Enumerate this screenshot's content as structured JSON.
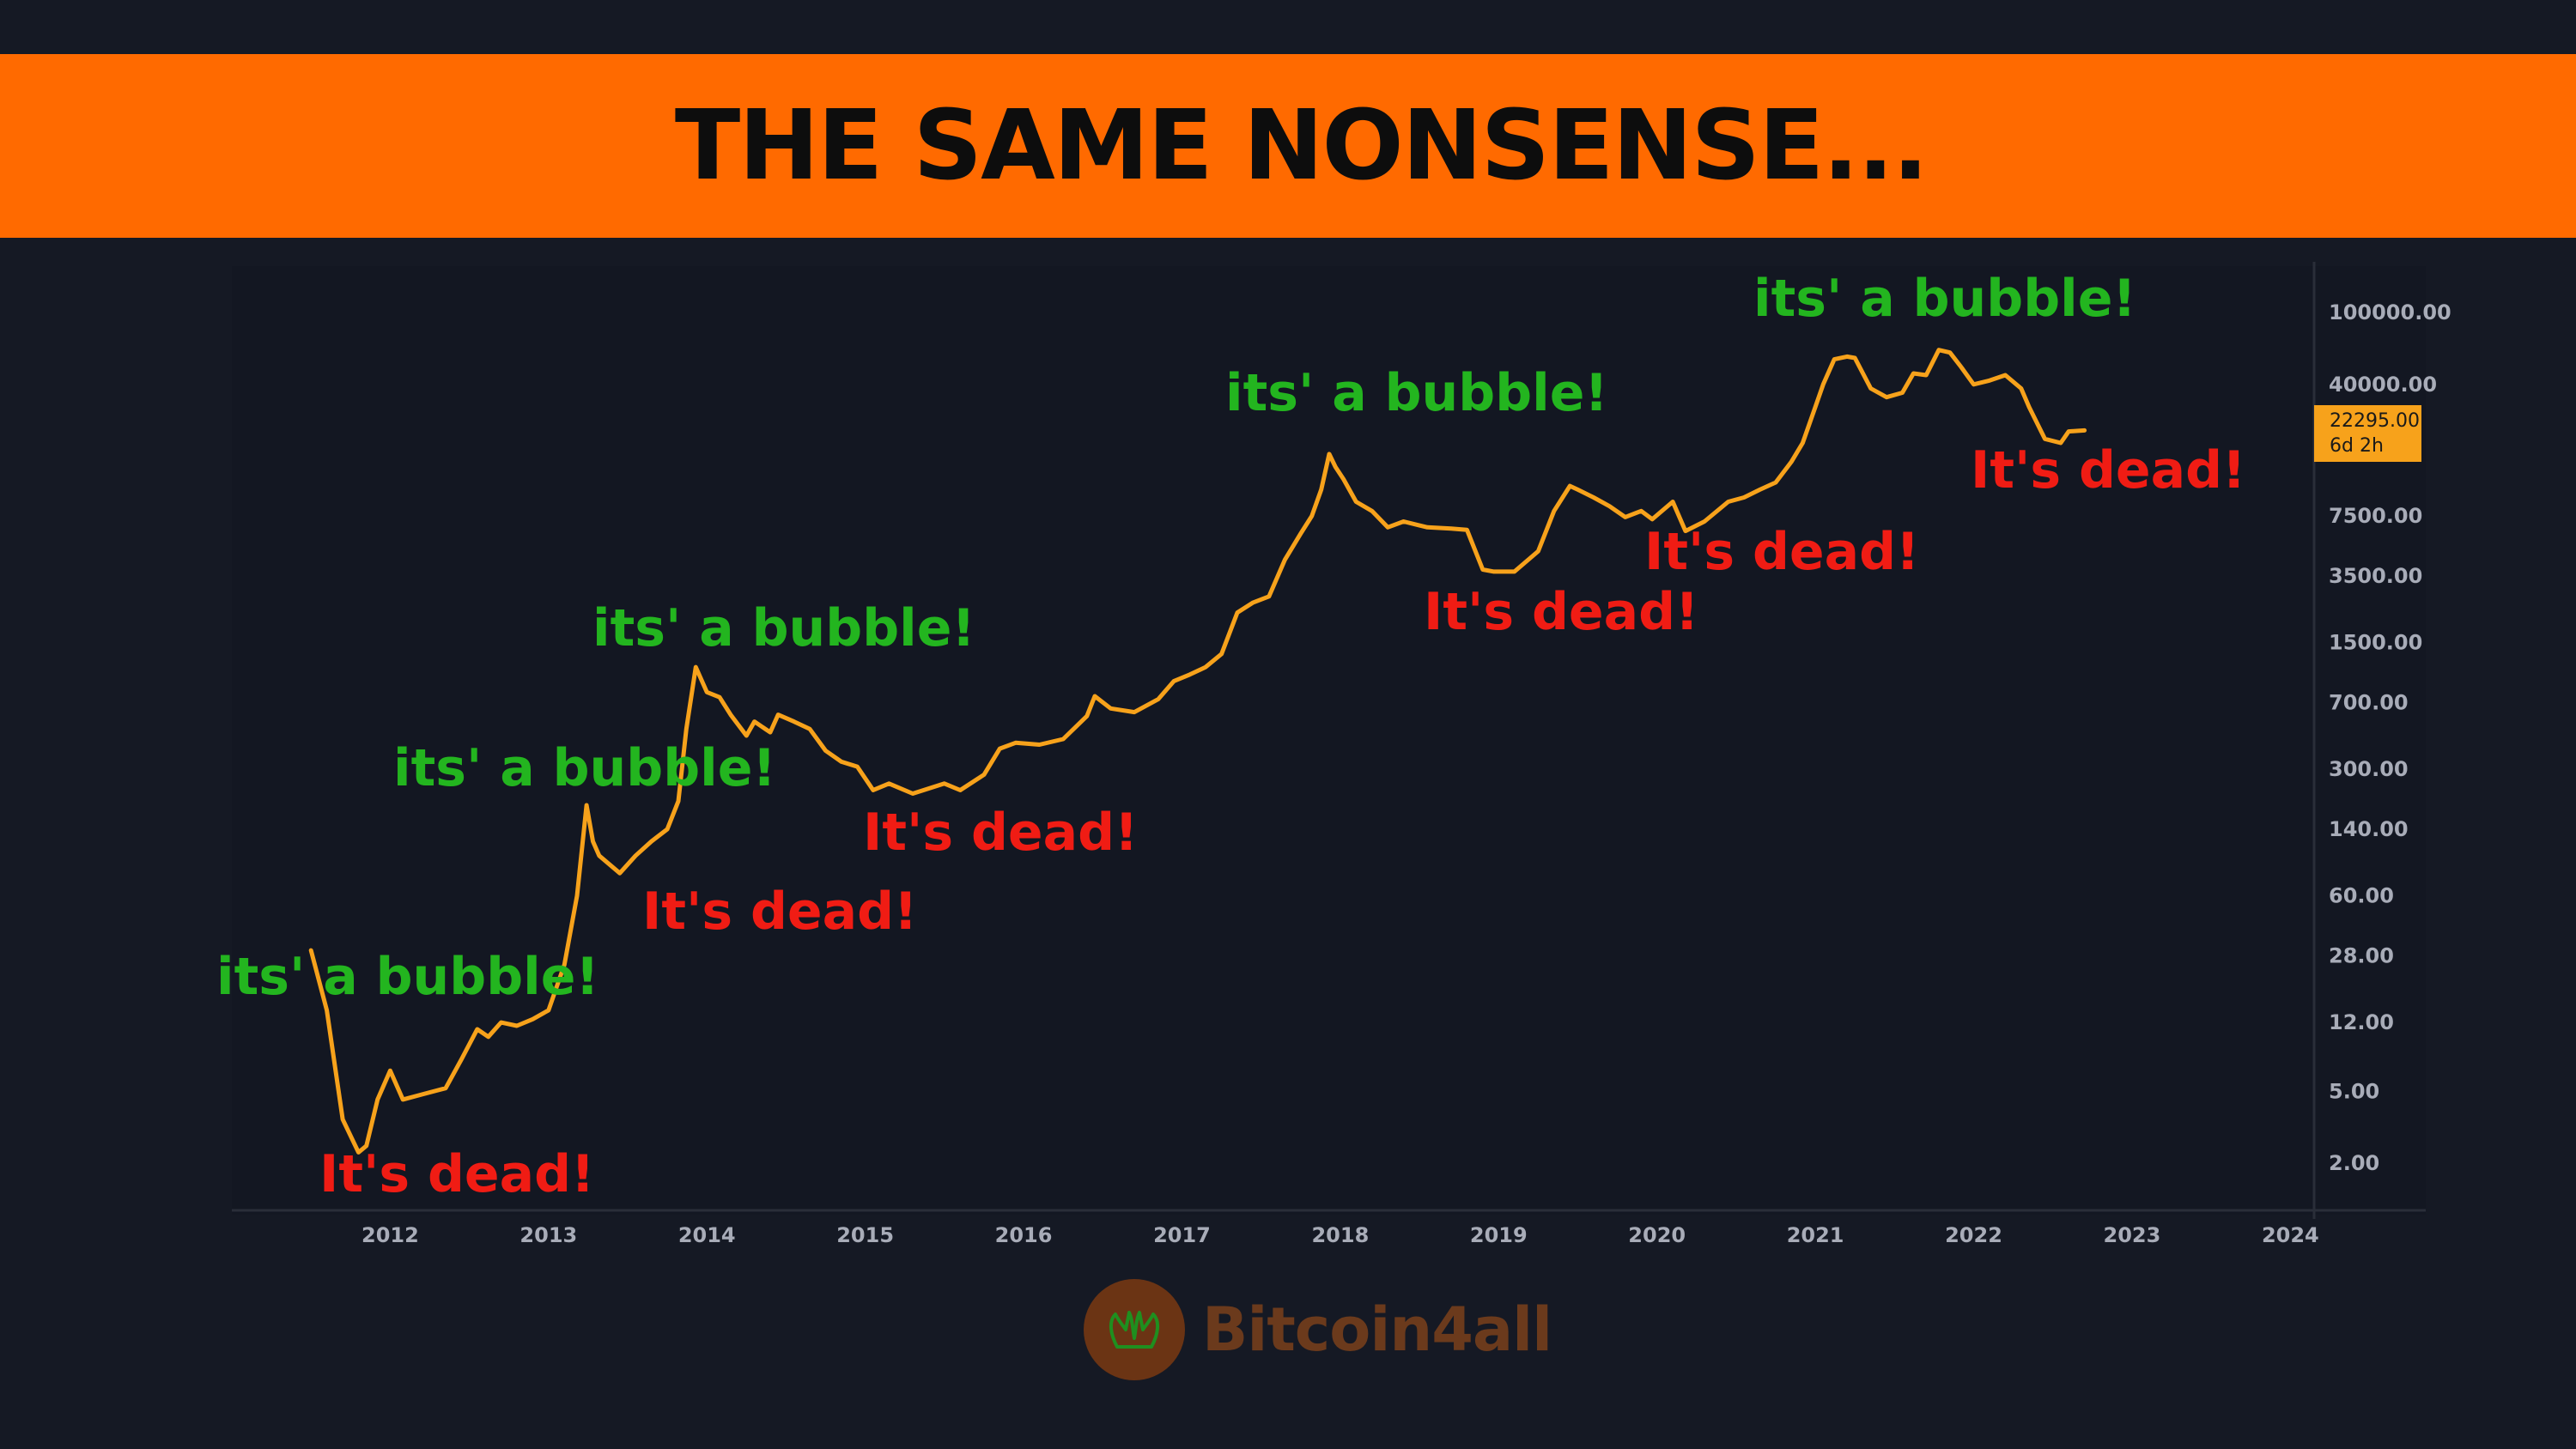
{
  "banner": {
    "title": "THE SAME NONSENSE..."
  },
  "price_tag": {
    "price": "22295.00",
    "countdown": "6d 2h"
  },
  "logo": {
    "name": "Bitcoin4all",
    "icon": "hands-icon"
  },
  "colors": {
    "background": "#151924",
    "banner": "#ff6a00",
    "line": "#f7a21b",
    "bubble_text": "#23b51f",
    "dead_text": "#f01c14"
  },
  "chart_data": {
    "type": "line",
    "y_scale": "log",
    "ylim": [
      1.1,
      180000
    ],
    "xlim": [
      2011.0,
      2024.15
    ],
    "grid": false,
    "x_ticks": [
      "2012",
      "2013",
      "2014",
      "2015",
      "2016",
      "2017",
      "2018",
      "2019",
      "2020",
      "2021",
      "2022",
      "2023",
      "2024"
    ],
    "y_ticks": [
      "100000.00",
      "40000.00",
      "7500.00",
      "3500.00",
      "1500.00",
      "700.00",
      "300.00",
      "140.00",
      "60.00",
      "28.00",
      "12.00",
      "5.00",
      "2.00"
    ],
    "series": [
      {
        "x": [
          2011.5,
          2011.6,
          2011.7,
          2011.8,
          2011.85,
          2011.92,
          2012.0,
          2012.08,
          2012.2,
          2012.35,
          2012.45,
          2012.55,
          2012.62,
          2012.7,
          2012.8,
          2012.9,
          2013.0,
          2013.1,
          2013.18,
          2013.24,
          2013.28,
          2013.32,
          2013.45,
          2013.55,
          2013.65,
          2013.75,
          2013.82,
          2013.87,
          2013.93,
          2014.0,
          2014.08,
          2014.15,
          2014.25,
          2014.3,
          2014.4,
          2014.45,
          2014.55,
          2014.65,
          2014.75,
          2014.85,
          2014.95,
          2015.05,
          2015.15,
          2015.3,
          2015.5,
          2015.6,
          2015.75,
          2015.85,
          2015.95,
          2016.1,
          2016.25,
          2016.4,
          2016.45,
          2016.55,
          2016.7,
          2016.85,
          2016.95,
          2017.05,
          2017.15,
          2017.25,
          2017.35,
          2017.45,
          2017.55,
          2017.65,
          2017.75,
          2017.82,
          2017.88,
          2017.93,
          2017.97,
          2018.02,
          2018.1,
          2018.2,
          2018.3,
          2018.4,
          2018.55,
          2018.7,
          2018.8,
          2018.9,
          2018.97,
          2019.1,
          2019.25,
          2019.35,
          2019.45,
          2019.5,
          2019.6,
          2019.7,
          2019.8,
          2019.9,
          2019.97,
          2020.1,
          2020.18,
          2020.3,
          2020.45,
          2020.55,
          2020.65,
          2020.75,
          2020.85,
          2020.92,
          2021.0,
          2021.05,
          2021.12,
          2021.2,
          2021.25,
          2021.35,
          2021.45,
          2021.55,
          2021.62,
          2021.7,
          2021.78,
          2021.85,
          2021.92,
          2022.0,
          2022.1,
          2022.2,
          2022.3,
          2022.35,
          2022.45,
          2022.55,
          2022.6,
          2022.7
        ],
        "values": [
          30,
          14,
          3.5,
          2.3,
          2.5,
          4.5,
          6.5,
          4.5,
          4.8,
          5.2,
          7.5,
          11,
          10,
          12,
          11.5,
          12.5,
          14,
          25,
          60,
          190,
          120,
          100,
          80,
          100,
          120,
          140,
          200,
          500,
          1100,
          800,
          750,
          600,
          460,
          550,
          480,
          600,
          550,
          500,
          380,
          330,
          310,
          230,
          250,
          220,
          250,
          230,
          280,
          390,
          420,
          410,
          440,
          590,
          760,
          650,
          620,
          730,
          920,
          1000,
          1100,
          1300,
          2200,
          2500,
          2700,
          4300,
          6000,
          7500,
          10500,
          16500,
          14000,
          12000,
          9000,
          8000,
          6500,
          7000,
          6500,
          6400,
          6300,
          3800,
          3700,
          3700,
          4800,
          8000,
          11000,
          10500,
          9500,
          8500,
          7400,
          8000,
          7200,
          9000,
          6200,
          7000,
          9000,
          9500,
          10500,
          11500,
          15000,
          19000,
          30000,
          40000,
          55000,
          57000,
          56000,
          38000,
          34000,
          36000,
          46000,
          45000,
          62000,
          60000,
          50000,
          40000,
          42000,
          45000,
          38000,
          30000,
          20000,
          19000,
          22000,
          22295
        ]
      }
    ],
    "annotations": [
      {
        "text": "its' a bubble!",
        "kind": "bubble"
      },
      {
        "text": "It's dead!",
        "kind": "dead"
      },
      {
        "text": "its' a bubble!",
        "kind": "bubble"
      },
      {
        "text": "It's dead!",
        "kind": "dead"
      },
      {
        "text": "its' a bubble!",
        "kind": "bubble"
      },
      {
        "text": "It's dead!",
        "kind": "dead"
      },
      {
        "text": "its' a bubble!",
        "kind": "bubble"
      },
      {
        "text": "It's dead!",
        "kind": "dead"
      },
      {
        "text": "It's dead!",
        "kind": "dead"
      },
      {
        "text": "its' a bubble!",
        "kind": "bubble"
      },
      {
        "text": "It's dead!",
        "kind": "dead"
      }
    ]
  }
}
